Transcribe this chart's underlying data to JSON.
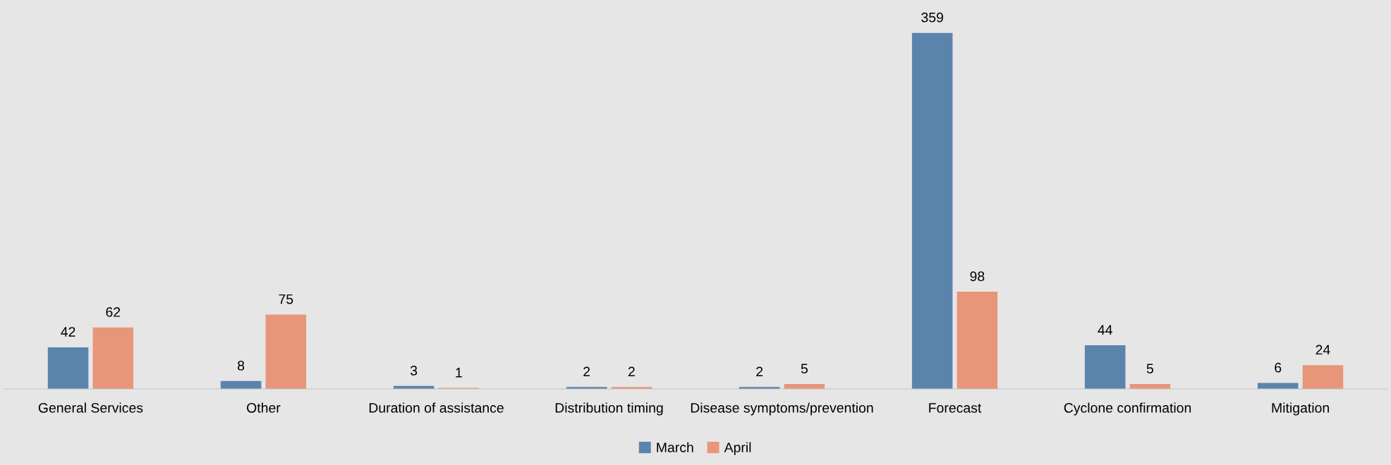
{
  "chart_data": {
    "type": "bar",
    "categories": [
      "General Services",
      "Other",
      "Duration of assistance",
      "Distribution timing",
      "Disease symptoms/prevention",
      "Forecast",
      "Cyclone confirmation",
      "Mitigation"
    ],
    "series": [
      {
        "name": "March",
        "color": "#5b84ad",
        "values": [
          42,
          8,
          3,
          2,
          2,
          359,
          44,
          6
        ]
      },
      {
        "name": "April",
        "color": "#e8967a",
        "values": [
          62,
          75,
          1,
          2,
          5,
          98,
          5,
          24
        ]
      }
    ],
    "data_labels": true,
    "legend": "bottom",
    "grid": false
  }
}
